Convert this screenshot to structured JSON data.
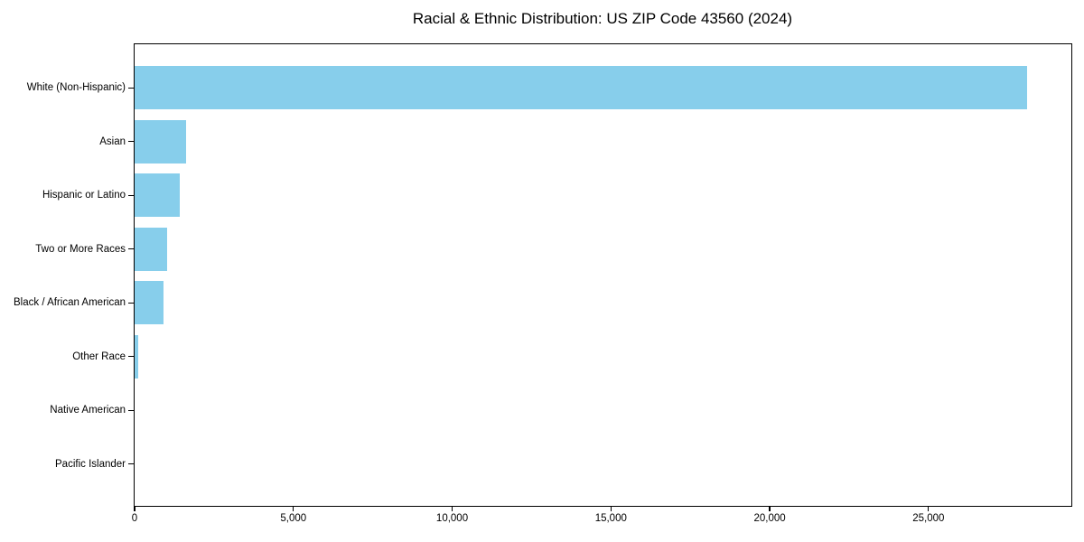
{
  "title": "Racial & Ethnic Distribution: US ZIP Code 43560 (2024)",
  "chart_data": {
    "type": "bar",
    "orientation": "horizontal",
    "title": "Racial & Ethnic Distribution: US ZIP Code 43560 (2024)",
    "categories": [
      "White (Non-Hispanic)",
      "Asian",
      "Hispanic or Latino",
      "Two or More Races",
      "Black / African American",
      "Other Race",
      "Native American",
      "Pacific Islander"
    ],
    "values": [
      28100,
      1620,
      1420,
      1020,
      910,
      110,
      0,
      0
    ],
    "xlabel": "",
    "ylabel": "",
    "xlim": [
      0,
      29500
    ],
    "x_ticks": [
      0,
      5000,
      10000,
      15000,
      20000,
      25000
    ],
    "x_tick_labels": [
      "0",
      "5,000",
      "10,000",
      "15,000",
      "20,000",
      "25,000"
    ],
    "bar_color": "#87CEEB",
    "axis_color": "#000000",
    "background_color": "#ffffff",
    "grid": false,
    "legend": false,
    "categories_top_to_bottom": true
  }
}
